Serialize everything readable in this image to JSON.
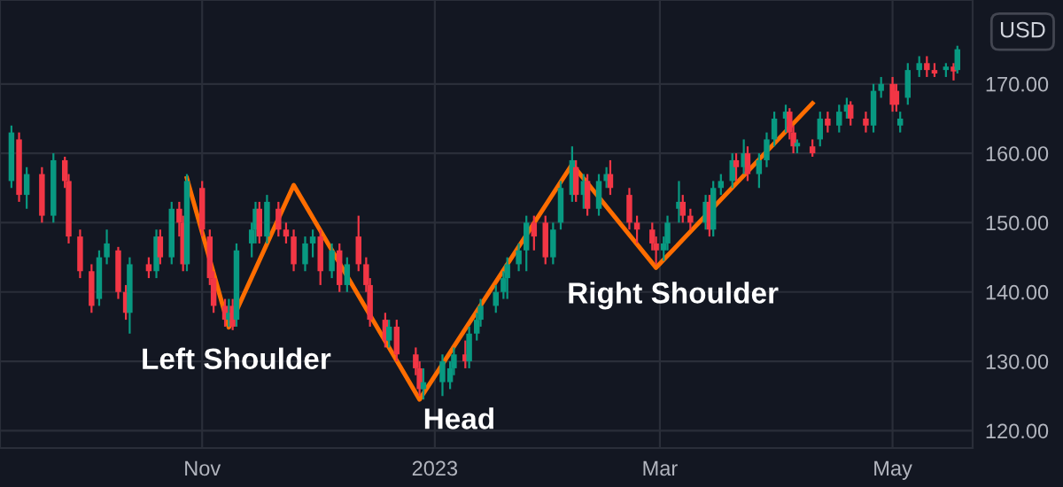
{
  "chart_data": {
    "type": "candlestick",
    "annotations": [
      "USD",
      "Left Shoulder",
      "Head",
      "Right Shoulder"
    ],
    "x": [
      "2022-09-12",
      "2022-09-14",
      "2022-09-16",
      "2022-09-20",
      "2022-09-23",
      "2022-09-26",
      "2022-09-27",
      "2022-09-30",
      "2022-10-03",
      "2022-10-05",
      "2022-10-07",
      "2022-10-10",
      "2022-10-12",
      "2022-10-13",
      "2022-10-18",
      "2022-10-20",
      "2022-10-21",
      "2022-10-24",
      "2022-10-26",
      "2022-10-27",
      "2022-10-28",
      "2022-11-01",
      "2022-11-03",
      "2022-11-04",
      "2022-11-07",
      "2022-11-08",
      "2022-11-09",
      "2022-11-10",
      "2022-11-14",
      "2022-11-15",
      "2022-11-16",
      "2022-11-18",
      "2022-11-21",
      "2022-11-23",
      "2022-11-25",
      "2022-11-28",
      "2022-11-30",
      "2022-12-02",
      "2022-12-05",
      "2022-12-07",
      "2022-12-09",
      "2022-12-12",
      "2022-12-14",
      "2022-12-15",
      "2022-12-19",
      "2022-12-20",
      "2022-12-22",
      "2022-12-27",
      "2022-12-28",
      "2022-12-29",
      "2023-01-03",
      "2023-01-05",
      "2023-01-06",
      "2023-01-09",
      "2023-01-10",
      "2023-01-12",
      "2023-01-13",
      "2023-01-17",
      "2023-01-19",
      "2023-01-20",
      "2023-01-23",
      "2023-01-25",
      "2023-01-27",
      "2023-01-30",
      "2023-02-01",
      "2023-02-03",
      "2023-02-06",
      "2023-02-07",
      "2023-02-09",
      "2023-02-10",
      "2023-02-13",
      "2023-02-15",
      "2023-02-16",
      "2023-02-21",
      "2023-02-23",
      "2023-02-27",
      "2023-02-28",
      "2023-03-02",
      "2023-03-03",
      "2023-03-06",
      "2023-03-07",
      "2023-03-09",
      "2023-03-13",
      "2023-03-14",
      "2023-03-15",
      "2023-03-17",
      "2023-03-20",
      "2023-03-21",
      "2023-03-23",
      "2023-03-24",
      "2023-03-27",
      "2023-03-29",
      "2023-03-31",
      "2023-04-03",
      "2023-04-04",
      "2023-04-05",
      "2023-04-06",
      "2023-04-10",
      "2023-04-12",
      "2023-04-14",
      "2023-04-17",
      "2023-04-19",
      "2023-04-20",
      "2023-04-24",
      "2023-04-26",
      "2023-04-28",
      "2023-05-01",
      "2023-05-02",
      "2023-05-03",
      "2023-05-05",
      "2023-05-08",
      "2023-05-10",
      "2023-05-12",
      "2023-05-15",
      "2023-05-17",
      "2023-05-18"
    ],
    "ohlc": [
      [
        156,
        164,
        155,
        163
      ],
      [
        162,
        163,
        153,
        154
      ],
      [
        154,
        158,
        152,
        157
      ],
      [
        157,
        158,
        150,
        151
      ],
      [
        151,
        160,
        150,
        159
      ],
      [
        159,
        159.5,
        155,
        156
      ],
      [
        156,
        157,
        147,
        148
      ],
      [
        148,
        149,
        142,
        143
      ],
      [
        143,
        144,
        137,
        138
      ],
      [
        139,
        146,
        138,
        145
      ],
      [
        145,
        149,
        144,
        147
      ],
      [
        146,
        146.5,
        139,
        140
      ],
      [
        140,
        141,
        136,
        137
      ],
      [
        137,
        145,
        134,
        144
      ],
      [
        144,
        145,
        142,
        143
      ],
      [
        143,
        149,
        142,
        148
      ],
      [
        148,
        149,
        144,
        145
      ],
      [
        145,
        153,
        144,
        152
      ],
      [
        152,
        153,
        148,
        150
      ],
      [
        150,
        151,
        143,
        144
      ],
      [
        144,
        157,
        143,
        156
      ],
      [
        155,
        156,
        148,
        149
      ],
      [
        148,
        149,
        141,
        142
      ],
      [
        142,
        143,
        137,
        138
      ],
      [
        138,
        139,
        135,
        136
      ],
      [
        136,
        139,
        135,
        137
      ],
      [
        138,
        139,
        134.5,
        135
      ],
      [
        136,
        147,
        135,
        146
      ],
      [
        147,
        150,
        145,
        149
      ],
      [
        149,
        153,
        147,
        152
      ],
      [
        152,
        153,
        147,
        148
      ],
      [
        148,
        154,
        147,
        153
      ],
      [
        152,
        153,
        148,
        149
      ],
      [
        149,
        150,
        147,
        148
      ],
      [
        148,
        149,
        143,
        144
      ],
      [
        144,
        148,
        143,
        147
      ],
      [
        147,
        149,
        145,
        148
      ],
      [
        148,
        149,
        141,
        143
      ],
      [
        143,
        147,
        142,
        146
      ],
      [
        146,
        147,
        140,
        141
      ],
      [
        141,
        145,
        140,
        144
      ],
      [
        148,
        151,
        143,
        144
      ],
      [
        144,
        145,
        140,
        141
      ],
      [
        141,
        142,
        135,
        136
      ],
      [
        136,
        137,
        132,
        133
      ],
      [
        133,
        136,
        132,
        135
      ],
      [
        135,
        136,
        130,
        131
      ],
      [
        131,
        132,
        128,
        129
      ],
      [
        129,
        130,
        125,
        126
      ],
      [
        126,
        129,
        124.5,
        127
      ],
      [
        127,
        131,
        125,
        130
      ],
      [
        127,
        130,
        126,
        129
      ],
      [
        129,
        132,
        128,
        131
      ],
      [
        131,
        133,
        129,
        130
      ],
      [
        130,
        135,
        129,
        134
      ],
      [
        134,
        137,
        133,
        136
      ],
      [
        136,
        139,
        135,
        138
      ],
      [
        138,
        141,
        137,
        140
      ],
      [
        140,
        143,
        139,
        142
      ],
      [
        142,
        145,
        139,
        144
      ],
      [
        144,
        147,
        143,
        146
      ],
      [
        146,
        151,
        143,
        150
      ],
      [
        150,
        151,
        146,
        148
      ],
      [
        150,
        151,
        144,
        145
      ],
      [
        145,
        150,
        144,
        149
      ],
      [
        150,
        156,
        149,
        155
      ],
      [
        154,
        161,
        153,
        159
      ],
      [
        158,
        159,
        153,
        154
      ],
      [
        154,
        157,
        152,
        156
      ],
      [
        156,
        157,
        151,
        152
      ],
      [
        152,
        157,
        151,
        156
      ],
      [
        156,
        158,
        155,
        157
      ],
      [
        157,
        159,
        154,
        155
      ],
      [
        154,
        155,
        149,
        150
      ],
      [
        150,
        151,
        147,
        149
      ],
      [
        149,
        150,
        146,
        147
      ],
      [
        147,
        148,
        144,
        146
      ],
      [
        146,
        148,
        144.5,
        147
      ],
      [
        147,
        151,
        146,
        150
      ],
      [
        152,
        156,
        150,
        153
      ],
      [
        153,
        154,
        150,
        151
      ],
      [
        151,
        152,
        149,
        150
      ],
      [
        150,
        154,
        149,
        153
      ],
      [
        153,
        154,
        148,
        149
      ],
      [
        149,
        156,
        148,
        155
      ],
      [
        155,
        157,
        154,
        156
      ],
      [
        156,
        160,
        155,
        159
      ],
      [
        159,
        160,
        156,
        158
      ],
      [
        158,
        162,
        157,
        160
      ],
      [
        160,
        161,
        156,
        157
      ],
      [
        157,
        160,
        155,
        159
      ],
      [
        159,
        163,
        158,
        162
      ],
      [
        162,
        166,
        161,
        165
      ],
      [
        165,
        167,
        163,
        166
      ],
      [
        166,
        166.5,
        162,
        163
      ],
      [
        163,
        164,
        160,
        161
      ],
      [
        161,
        162,
        160,
        161.5
      ],
      [
        161,
        162,
        159.5,
        160
      ],
      [
        162,
        166,
        161,
        165
      ],
      [
        165,
        166,
        163,
        164
      ],
      [
        164,
        167,
        163,
        166
      ],
      [
        166,
        168,
        165,
        167
      ],
      [
        167,
        167.5,
        164,
        165
      ],
      [
        165,
        166,
        163,
        164
      ],
      [
        164,
        170,
        163,
        169
      ],
      [
        169,
        171,
        168,
        170
      ],
      [
        170,
        171,
        166,
        167
      ],
      [
        169,
        170,
        166,
        167
      ],
      [
        164,
        166,
        163,
        165
      ],
      [
        168,
        173,
        167,
        172
      ],
      [
        172,
        174,
        171,
        173
      ],
      [
        173,
        174,
        171,
        172
      ],
      [
        172,
        173,
        171,
        171.5
      ],
      [
        172,
        173,
        171,
        172.5
      ],
      [
        172.5,
        173,
        170.5,
        171.8
      ],
      [
        172,
        175.5,
        171.5,
        175
      ]
    ],
    "colors": [
      "#089981",
      "#f23645",
      "#089981",
      "#f23645",
      "#089981",
      "#f23645",
      "#f23645",
      "#f23645",
      "#f23645",
      "#089981",
      "#089981",
      "#f23645",
      "#f23645",
      "#089981",
      "#f23645",
      "#089981",
      "#f23645",
      "#089981",
      "#f23645",
      "#f23645",
      "#089981",
      "#f23645",
      "#f23645",
      "#f23645",
      "#f23645",
      "#089981",
      "#f23645",
      "#089981",
      "#089981",
      "#089981",
      "#f23645",
      "#089981",
      "#f23645",
      "#f23645",
      "#f23645",
      "#089981",
      "#089981",
      "#f23645",
      "#089981",
      "#f23645",
      "#089981",
      "#f23645",
      "#f23645",
      "#f23645",
      "#f23645",
      "#089981",
      "#f23645",
      "#f23645",
      "#f23645",
      "#089981",
      "#089981",
      "#089981",
      "#089981",
      "#f23645",
      "#089981",
      "#089981",
      "#089981",
      "#089981",
      "#089981",
      "#089981",
      "#089981",
      "#089981",
      "#f23645",
      "#f23645",
      "#089981",
      "#089981",
      "#089981",
      "#f23645",
      "#089981",
      "#f23645",
      "#089981",
      "#089981",
      "#f23645",
      "#f23645",
      "#f23645",
      "#f23645",
      "#f23645",
      "#089981",
      "#089981",
      "#089981",
      "#f23645",
      "#f23645",
      "#089981",
      "#f23645",
      "#089981",
      "#089981",
      "#089981",
      "#f23645",
      "#089981",
      "#f23645",
      "#089981",
      "#089981",
      "#089981",
      "#089981",
      "#f23645",
      "#f23645",
      "#089981",
      "#f23645",
      "#089981",
      "#f23645",
      "#089981",
      "#089981",
      "#f23645",
      "#f23645",
      "#089981",
      "#089981",
      "#f23645",
      "#f23645",
      "#089981",
      "#089981",
      "#089981",
      "#f23645",
      "#f23645",
      "#089981",
      "#f23645",
      "#089981"
    ],
    "series": [
      {
        "type": "line",
        "color": "#ff6d00",
        "x": [
          "2022-10-28",
          "2022-11-08",
          "2022-11-25",
          "2022-12-28",
          "2023-02-06",
          "2023-02-28",
          "2023-04-10"
        ],
        "values": [
          156.4,
          134.9,
          155.4,
          124.5,
          158.4,
          143.5,
          167.2
        ]
      }
    ],
    "xlim": [
      "2022-09-09",
      "2023-05-22"
    ],
    "xticks": [
      {
        "value": "2022-11-01",
        "label": "Nov"
      },
      {
        "value": "2023-01-01",
        "label": "2023"
      },
      {
        "value": "2023-03-01",
        "label": "Mar"
      },
      {
        "value": "2023-05-01",
        "label": "May"
      }
    ],
    "ylim": [
      117.5,
      182.1
    ],
    "yticks": [
      {
        "value": 120,
        "label": "120.00"
      },
      {
        "value": 130,
        "label": "130.00"
      },
      {
        "value": 140,
        "label": "140.00"
      },
      {
        "value": 150,
        "label": "150.00"
      },
      {
        "value": 160,
        "label": "160.00"
      },
      {
        "value": 170,
        "label": "170.00"
      }
    ],
    "grid": true
  }
}
